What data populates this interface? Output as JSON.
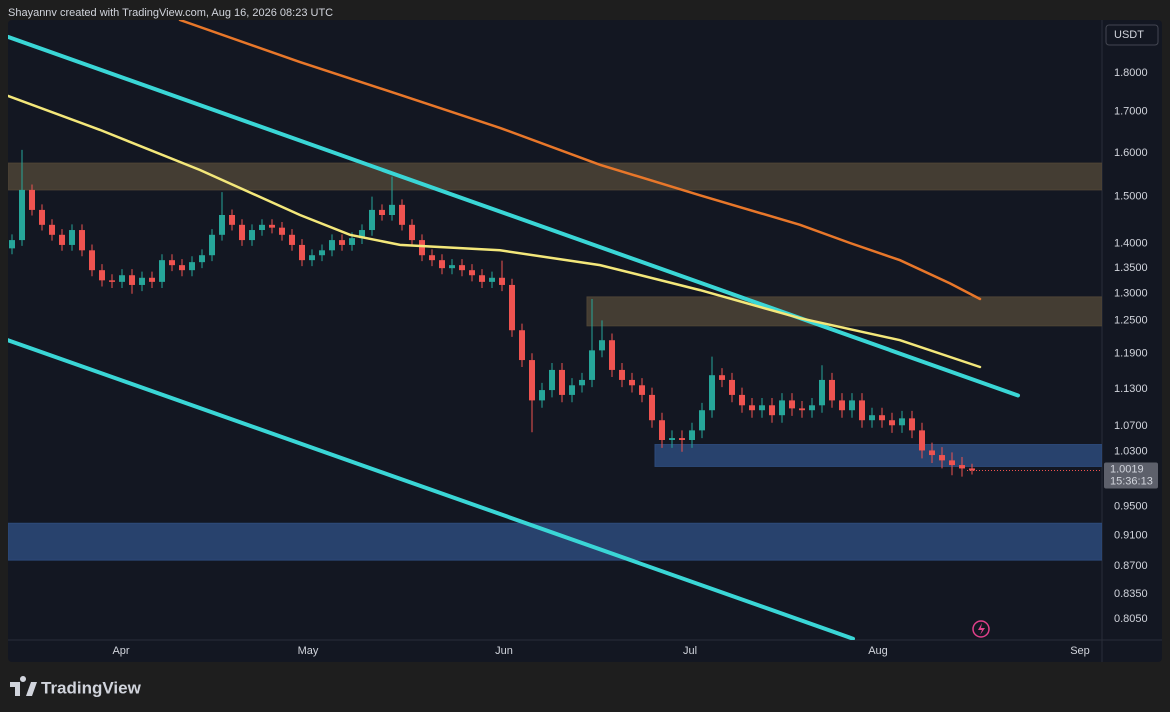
{
  "attribution": "Shayannv created with TradingView.com, Aug 16, 2026 08:23 UTC",
  "brand": "TradingView",
  "chart_data": {
    "type": "candlestick",
    "currency": "USDT",
    "scale": "log",
    "grid": false,
    "up_color": "#26a69a",
    "down_color": "#ef5350",
    "xlim": [
      -0.4,
      109
    ],
    "xticks": [
      {
        "value": 10.9,
        "label": "Apr"
      },
      {
        "value": 29.6,
        "label": "May"
      },
      {
        "value": 49.2,
        "label": "Jun"
      },
      {
        "value": 67.8,
        "label": "Jul"
      },
      {
        "value": 86.6,
        "label": "Aug"
      },
      {
        "value": 106.8,
        "label": "Sep"
      }
    ],
    "ylim": [
      0.7805,
      1.946
    ],
    "yticks": [
      {
        "value": 1.8,
        "label": "1.8000"
      },
      {
        "value": 1.7,
        "label": "1.7000"
      },
      {
        "value": 1.6,
        "label": "1.6000"
      },
      {
        "value": 1.5,
        "label": "1.5000"
      },
      {
        "value": 1.4,
        "label": "1.4000"
      },
      {
        "value": 1.35,
        "label": "1.3500"
      },
      {
        "value": 1.3,
        "label": "1.3000"
      },
      {
        "value": 1.25,
        "label": "1.2500"
      },
      {
        "value": 1.19,
        "label": "1.1900"
      },
      {
        "value": 1.13,
        "label": "1.1300"
      },
      {
        "value": 1.07,
        "label": "1.0700"
      },
      {
        "value": 1.03,
        "label": "1.0300"
      },
      {
        "value": 0.95,
        "label": "0.9500"
      },
      {
        "value": 0.91,
        "label": "0.9100"
      },
      {
        "value": 0.87,
        "label": "0.8700"
      },
      {
        "value": 0.835,
        "label": "0.8350"
      },
      {
        "value": 0.805,
        "label": "0.8050"
      }
    ],
    "open": [
      1.39,
      1.407,
      1.515,
      1.471,
      1.439,
      1.418,
      1.397,
      1.428,
      1.386,
      1.346,
      1.326,
      1.323,
      1.336,
      1.317,
      1.331,
      1.323,
      1.366,
      1.356,
      1.346,
      1.362,
      1.376,
      1.418,
      1.46,
      1.439,
      1.407,
      1.428,
      1.439,
      1.433,
      1.418,
      1.397,
      1.366,
      1.376,
      1.386,
      1.407,
      1.397,
      1.411,
      1.428,
      1.471,
      1.46,
      1.482,
      1.439,
      1.407,
      1.376,
      1.366,
      1.35,
      1.356,
      1.346,
      1.336,
      1.323,
      1.331,
      1.317,
      1.232,
      1.179,
      1.111,
      1.128,
      1.162,
      1.12,
      1.136,
      1.145,
      1.196,
      1.214,
      1.162,
      1.145,
      1.136,
      1.12,
      1.079,
      1.048,
      1.051,
      1.048,
      1.063,
      1.095,
      1.153,
      1.145,
      1.12,
      1.103,
      1.095,
      1.103,
      1.087,
      1.111,
      1.098,
      1.095,
      1.103,
      1.145,
      1.111,
      1.095,
      1.111,
      1.079,
      1.087,
      1.079,
      1.071,
      1.082,
      1.063,
      1.032,
      1.025,
      1.017,
      1.01,
      1.005
    ],
    "high": [
      1.419,
      1.607,
      1.527,
      1.483,
      1.451,
      1.43,
      1.44,
      1.44,
      1.398,
      1.358,
      1.338,
      1.348,
      1.348,
      1.343,
      1.343,
      1.378,
      1.378,
      1.368,
      1.374,
      1.388,
      1.43,
      1.51,
      1.472,
      1.451,
      1.44,
      1.451,
      1.451,
      1.445,
      1.43,
      1.409,
      1.388,
      1.398,
      1.419,
      1.419,
      1.423,
      1.44,
      1.5,
      1.483,
      1.545,
      1.494,
      1.451,
      1.419,
      1.388,
      1.378,
      1.368,
      1.368,
      1.358,
      1.348,
      1.343,
      1.365,
      1.329,
      1.244,
      1.191,
      1.14,
      1.174,
      1.174,
      1.148,
      1.157,
      1.29,
      1.25,
      1.226,
      1.174,
      1.157,
      1.148,
      1.132,
      1.091,
      1.063,
      1.063,
      1.075,
      1.107,
      1.185,
      1.165,
      1.157,
      1.132,
      1.115,
      1.115,
      1.115,
      1.123,
      1.123,
      1.11,
      1.115,
      1.17,
      1.157,
      1.123,
      1.123,
      1.123,
      1.099,
      1.099,
      1.091,
      1.094,
      1.094,
      1.075,
      1.044,
      1.037,
      1.029,
      1.022,
      1.012
    ],
    "low": [
      1.378,
      1.395,
      1.459,
      1.427,
      1.406,
      1.385,
      1.385,
      1.374,
      1.334,
      1.314,
      1.311,
      1.311,
      1.3,
      1.305,
      1.311,
      1.311,
      1.344,
      1.334,
      1.334,
      1.35,
      1.364,
      1.406,
      1.427,
      1.395,
      1.395,
      1.416,
      1.421,
      1.406,
      1.385,
      1.354,
      1.354,
      1.364,
      1.374,
      1.385,
      1.385,
      1.399,
      1.416,
      1.448,
      1.448,
      1.427,
      1.395,
      1.364,
      1.354,
      1.338,
      1.338,
      1.334,
      1.324,
      1.311,
      1.311,
      1.305,
      1.22,
      1.167,
      1.06,
      1.099,
      1.116,
      1.108,
      1.108,
      1.124,
      1.133,
      1.184,
      1.15,
      1.133,
      1.124,
      1.108,
      1.067,
      1.036,
      1.036,
      1.03,
      1.036,
      1.051,
      1.083,
      1.133,
      1.108,
      1.091,
      1.083,
      1.083,
      1.075,
      1.075,
      1.086,
      1.083,
      1.083,
      1.091,
      1.099,
      1.083,
      1.083,
      1.067,
      1.067,
      1.067,
      1.059,
      1.059,
      1.051,
      1.02,
      1.013,
      1.005,
      0.995,
      0.993,
      0.996
    ],
    "close": [
      1.407,
      1.515,
      1.471,
      1.439,
      1.418,
      1.397,
      1.428,
      1.386,
      1.346,
      1.326,
      1.323,
      1.336,
      1.317,
      1.331,
      1.323,
      1.366,
      1.356,
      1.346,
      1.362,
      1.376,
      1.418,
      1.46,
      1.439,
      1.407,
      1.428,
      1.439,
      1.433,
      1.418,
      1.397,
      1.366,
      1.376,
      1.386,
      1.407,
      1.397,
      1.411,
      1.428,
      1.471,
      1.46,
      1.482,
      1.439,
      1.407,
      1.376,
      1.366,
      1.35,
      1.356,
      1.346,
      1.336,
      1.323,
      1.331,
      1.317,
      1.232,
      1.179,
      1.111,
      1.128,
      1.162,
      1.12,
      1.136,
      1.145,
      1.196,
      1.214,
      1.162,
      1.145,
      1.136,
      1.12,
      1.079,
      1.048,
      1.051,
      1.048,
      1.063,
      1.095,
      1.153,
      1.145,
      1.12,
      1.103,
      1.095,
      1.103,
      1.087,
      1.111,
      1.098,
      1.095,
      1.103,
      1.145,
      1.111,
      1.095,
      1.111,
      1.079,
      1.087,
      1.079,
      1.071,
      1.082,
      1.063,
      1.032,
      1.025,
      1.017,
      1.01,
      1.005,
      1.002
    ],
    "zones": [
      {
        "color": "#4e4436",
        "x_start": -0.4,
        "values": [
          1.515,
          1.576
        ]
      },
      {
        "color": "#4e4436",
        "x_start": 57.5,
        "values": [
          1.24,
          1.294
        ]
      },
      {
        "color": "#2d4a7a",
        "x_start": 64.3,
        "values": [
          1.008,
          1.041
        ]
      },
      {
        "color": "#2d4a7a",
        "x_start": -0.4,
        "values": [
          0.878,
          0.927
        ]
      }
    ],
    "lines": [
      {
        "color": "#3ad6d6",
        "width": 4,
        "x": [
          -0.4,
          100.6
        ],
        "values": [
          1.898,
          1.119
        ]
      },
      {
        "color": "#3ad6d6",
        "width": 4,
        "x": [
          -0.4,
          84.1
        ],
        "values": [
          1.214,
          0.782
        ]
      },
      {
        "color": "#e8772a",
        "width": 2.5,
        "x": [
          16.8,
          28.8,
          38.8,
          48.8,
          58.8,
          68.8,
          78.8,
          83.8,
          88.8,
          93.8,
          96.8
        ],
        "values": [
          1.946,
          1.829,
          1.743,
          1.66,
          1.572,
          1.503,
          1.439,
          1.401,
          1.366,
          1.32,
          1.29
        ]
      },
      {
        "color": "#f3e77a",
        "width": 2.5,
        "x": [
          -0.4,
          8.8,
          18.8,
          28.8,
          33.8,
          38.8,
          48.8,
          58.8,
          68.8,
          78.8,
          88.8,
          96.8
        ],
        "values": [
          1.74,
          1.655,
          1.56,
          1.46,
          1.418,
          1.397,
          1.386,
          1.356,
          1.307,
          1.254,
          1.214,
          1.167
        ]
      }
    ],
    "last_price": 1.0019,
    "countdown": "15:36:13"
  }
}
